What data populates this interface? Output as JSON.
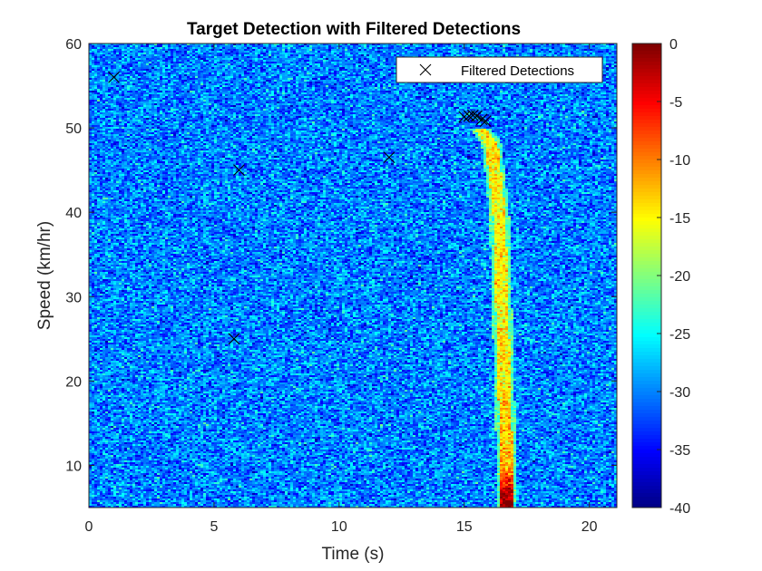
{
  "chart_data": {
    "type": "heatmap",
    "title": "Target Detection with Filtered Detections",
    "xlabel": "Time (s)",
    "ylabel": "Speed (km/hr)",
    "xlim": [
      0,
      21.1
    ],
    "ylim": [
      5,
      60
    ],
    "xticks": [
      0,
      5,
      10,
      15,
      20
    ],
    "yticks": [
      10,
      20,
      30,
      40,
      50,
      60
    ],
    "xtick_labels": [
      "0",
      "5",
      "10",
      "15",
      "20"
    ],
    "ytick_labels": [
      "10",
      "20",
      "30",
      "40",
      "50",
      "60"
    ],
    "colormap": "jet",
    "clim": [
      -40,
      0
    ],
    "colorbar_ticks": [
      0,
      -5,
      -10,
      -15,
      -20,
      -25,
      -30,
      -35,
      -40
    ],
    "colorbar_tick_labels": [
      "0",
      "-5",
      "-10",
      "-15",
      "-20",
      "-25",
      "-30",
      "-35",
      "-40"
    ],
    "background_level_db": -30,
    "target_track": {
      "description_points": [
        {
          "time": 15.6,
          "speed": 50,
          "level_db": -14
        },
        {
          "time": 16.1,
          "speed": 48,
          "level_db": -14
        },
        {
          "time": 16.4,
          "speed": 40,
          "level_db": -15
        },
        {
          "time": 16.5,
          "speed": 30,
          "level_db": -15
        },
        {
          "time": 16.6,
          "speed": 20,
          "level_db": -14
        },
        {
          "time": 16.7,
          "speed": 10,
          "level_db": -12
        },
        {
          "time": 16.7,
          "speed": 5.5,
          "level_db": 0
        }
      ]
    },
    "series": [
      {
        "name": "Filtered Detections",
        "marker": "x",
        "color": "#000000",
        "points": [
          {
            "x": 1.0,
            "y": 56
          },
          {
            "x": 6.0,
            "y": 45
          },
          {
            "x": 5.8,
            "y": 25
          },
          {
            "x": 12.0,
            "y": 46.5
          },
          {
            "x": 15.0,
            "y": 51.3
          },
          {
            "x": 15.2,
            "y": 51.4
          },
          {
            "x": 15.35,
            "y": 51.5
          },
          {
            "x": 15.5,
            "y": 51.4
          },
          {
            "x": 15.7,
            "y": 51.0
          },
          {
            "x": 15.85,
            "y": 50.8
          }
        ]
      }
    ],
    "legend": {
      "position": "top-right",
      "entries": [
        "Filtered Detections"
      ]
    }
  }
}
